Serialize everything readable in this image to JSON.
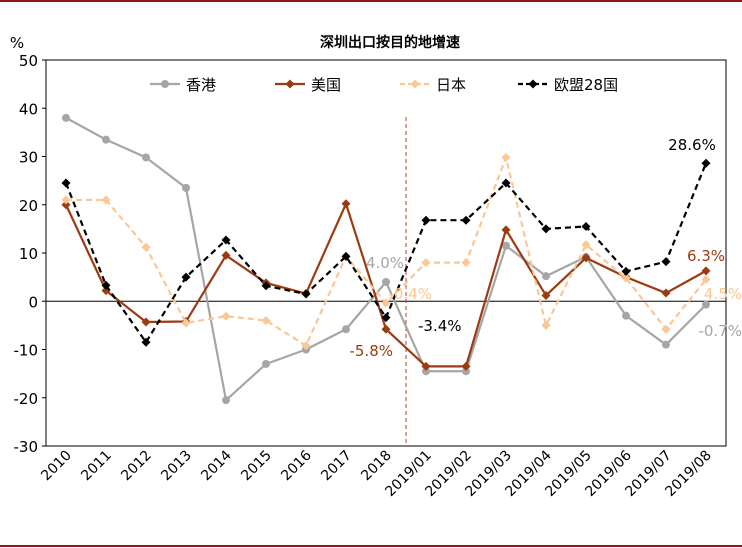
{
  "chart_data": {
    "type": "line",
    "title": "深圳出口按目的地增速",
    "ylabel": "%",
    "xlabel": "",
    "ylim": [
      -30,
      50
    ],
    "yticks": [
      -30,
      -20,
      -10,
      0,
      10,
      20,
      30,
      40,
      50
    ],
    "categories": [
      "2010",
      "2011",
      "2012",
      "2013",
      "2014",
      "2015",
      "2016",
      "2017",
      "2018",
      "2019/01",
      "2019/02",
      "2019/03",
      "2019/04",
      "2019/05",
      "2019/06",
      "2019/07",
      "2019/08"
    ],
    "legend_position": "top",
    "series": [
      {
        "name": "香港",
        "color": "#a6a6a6",
        "dash": "solid",
        "marker": "circle",
        "values": [
          38,
          33.5,
          29.8,
          23.5,
          -20.5,
          -13,
          -10,
          -5.8,
          4.0,
          -14.5,
          -14.5,
          11.5,
          5.2,
          9.2,
          -3,
          -9,
          -0.7
        ]
      },
      {
        "name": "美国",
        "color": "#9c3b12",
        "dash": "solid",
        "marker": "diamond",
        "values": [
          20,
          2.2,
          -4.3,
          -4.2,
          9.5,
          3.8,
          1.6,
          20.2,
          -5.8,
          -13.5,
          -13.5,
          14.8,
          1.2,
          9.0,
          5.0,
          1.7,
          6.3
        ]
      },
      {
        "name": "日本",
        "color": "#fac795",
        "dash": "dashed",
        "marker": "diamond",
        "values": [
          21,
          21,
          11.2,
          -4.5,
          -3.1,
          -4,
          -9.2,
          9.3,
          -0.4,
          8,
          8,
          29.8,
          -5,
          11.7,
          4.8,
          -5.8,
          4.5
        ]
      },
      {
        "name": "欧盟28国",
        "color": "#000000",
        "dash": "dashed",
        "marker": "diamond",
        "values": [
          24.5,
          3.3,
          -8.5,
          5,
          12.7,
          3.2,
          1.5,
          9.3,
          -3.4,
          16.8,
          16.8,
          24.5,
          15,
          15.5,
          6.2,
          8.2,
          28.6
        ]
      }
    ],
    "divider_after_category": "2018",
    "annotations": [
      {
        "text": "4.0%",
        "series": "香港"
      },
      {
        "text": "-0.4%",
        "series": "日本"
      },
      {
        "text": "-5.8%",
        "series": "美国"
      },
      {
        "text": "-3.4%",
        "series": "欧盟28国"
      },
      {
        "text": "28.6%",
        "series": "欧盟28国"
      },
      {
        "text": "6.3%",
        "series": "美国"
      },
      {
        "text": "4.5%",
        "series": "日本"
      },
      {
        "text": "-0.7%",
        "series": "香港"
      }
    ]
  }
}
